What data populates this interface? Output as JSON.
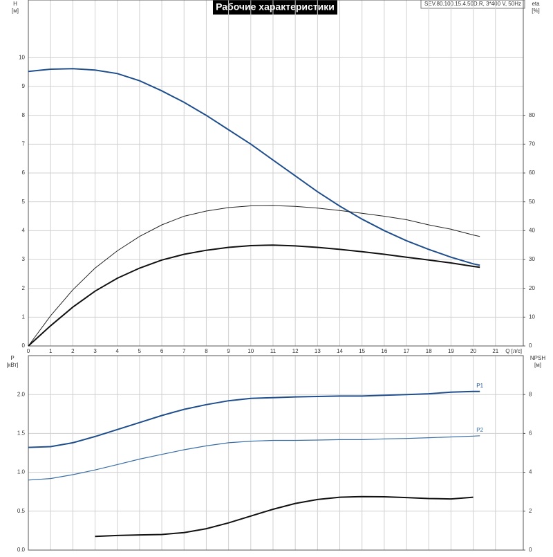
{
  "chart_data": [
    {
      "type": "line",
      "title": "Рабочие характеристики",
      "subtitle": "SEV.80.100.15.4.50D.R, 3*400 V, 50Hz",
      "y_label": "H",
      "y_unit": "[м]",
      "y2_label": "eta",
      "y2_unit": "[%]",
      "x_label": "Q [л/с]",
      "x": [
        0,
        1,
        2,
        3,
        4,
        5,
        6,
        7,
        8,
        9,
        10,
        11,
        12,
        13,
        14,
        15,
        16,
        17,
        18,
        19,
        20,
        20.3
      ],
      "xlim": [
        0,
        22.25
      ],
      "xticks": [
        0,
        1,
        2,
        3,
        4,
        5,
        6,
        7,
        8,
        9,
        10,
        11,
        12,
        13,
        14,
        15,
        16,
        17,
        18,
        19,
        20,
        21
      ],
      "ylim": [
        0,
        12
      ],
      "yticks": [
        0,
        1,
        2,
        3,
        4,
        5,
        6,
        7,
        8,
        9,
        10
      ],
      "y2lim": [
        0,
        120
      ],
      "y2ticks": [
        0,
        10,
        20,
        30,
        40,
        50,
        60,
        70,
        80
      ],
      "grid": true,
      "series": [
        {
          "color": "#1f4e8c",
          "line_width": 2,
          "values": [
            9.52,
            9.6,
            9.62,
            9.57,
            9.45,
            9.2,
            8.85,
            8.45,
            8.0,
            7.5,
            7.0,
            6.45,
            5.9,
            5.35,
            4.85,
            4.4,
            4.0,
            3.65,
            3.35,
            3.08,
            2.85,
            2.8
          ]
        },
        {
          "color": "#222222",
          "line_width": 1,
          "axis": "y2",
          "values": [
            0,
            10.5,
            19.5,
            27,
            33,
            38,
            42,
            45,
            46.8,
            48,
            48.6,
            48.7,
            48.4,
            47.8,
            47,
            46,
            45,
            43.8,
            42,
            40.5,
            38.5,
            38
          ]
        },
        {
          "color": "#111111",
          "line_width": 2,
          "axis": "y2",
          "values": [
            0,
            7,
            13.5,
            19,
            23.5,
            27,
            29.8,
            31.8,
            33.2,
            34.2,
            34.8,
            35,
            34.7,
            34.2,
            33.5,
            32.7,
            31.8,
            30.8,
            29.8,
            28.8,
            27.6,
            27.3
          ]
        }
      ]
    },
    {
      "type": "line",
      "y_label": "P",
      "y_unit": "[кВт]",
      "y2_label": "NPSH",
      "y2_unit": "[м]",
      "x": [
        0,
        1,
        2,
        3,
        4,
        5,
        6,
        7,
        8,
        9,
        10,
        11,
        12,
        13,
        14,
        15,
        16,
        17,
        18,
        19,
        20,
        20.3
      ],
      "xlim": [
        0,
        22.25
      ],
      "ylim": [
        0,
        2.5
      ],
      "yticks": [
        {
          "value": 0,
          "label": "0.0"
        },
        0.5,
        {
          "value": 1,
          "label": "1.0"
        },
        1.5,
        {
          "value": 2,
          "label": "2.0"
        }
      ],
      "y2lim": [
        0,
        10
      ],
      "y2ticks": [
        0,
        2,
        4,
        6,
        8
      ],
      "grid": true,
      "series": [
        {
          "name": "P1",
          "color": "#1f4e8c",
          "line_width": 2,
          "values": [
            1.32,
            1.33,
            1.38,
            1.46,
            1.55,
            1.64,
            1.73,
            1.81,
            1.87,
            1.92,
            1.95,
            1.96,
            1.97,
            1.975,
            1.98,
            1.98,
            1.99,
            2.0,
            2.01,
            2.03,
            2.04,
            2.04
          ]
        },
        {
          "name": "P2",
          "color": "#3a6ea5",
          "line_width": 1.2,
          "values": [
            0.9,
            0.92,
            0.97,
            1.03,
            1.1,
            1.17,
            1.23,
            1.29,
            1.34,
            1.38,
            1.4,
            1.41,
            1.41,
            1.415,
            1.42,
            1.42,
            1.43,
            1.435,
            1.445,
            1.455,
            1.465,
            1.47
          ]
        },
        {
          "color": "#111111",
          "line_width": 2,
          "axis": "y2",
          "values": [
            null,
            null,
            null,
            0.7,
            0.75,
            0.78,
            0.8,
            0.9,
            1.1,
            1.4,
            1.75,
            2.1,
            2.4,
            2.6,
            2.72,
            2.75,
            2.74,
            2.7,
            2.65,
            2.63,
            2.72,
            null
          ]
        }
      ]
    }
  ]
}
